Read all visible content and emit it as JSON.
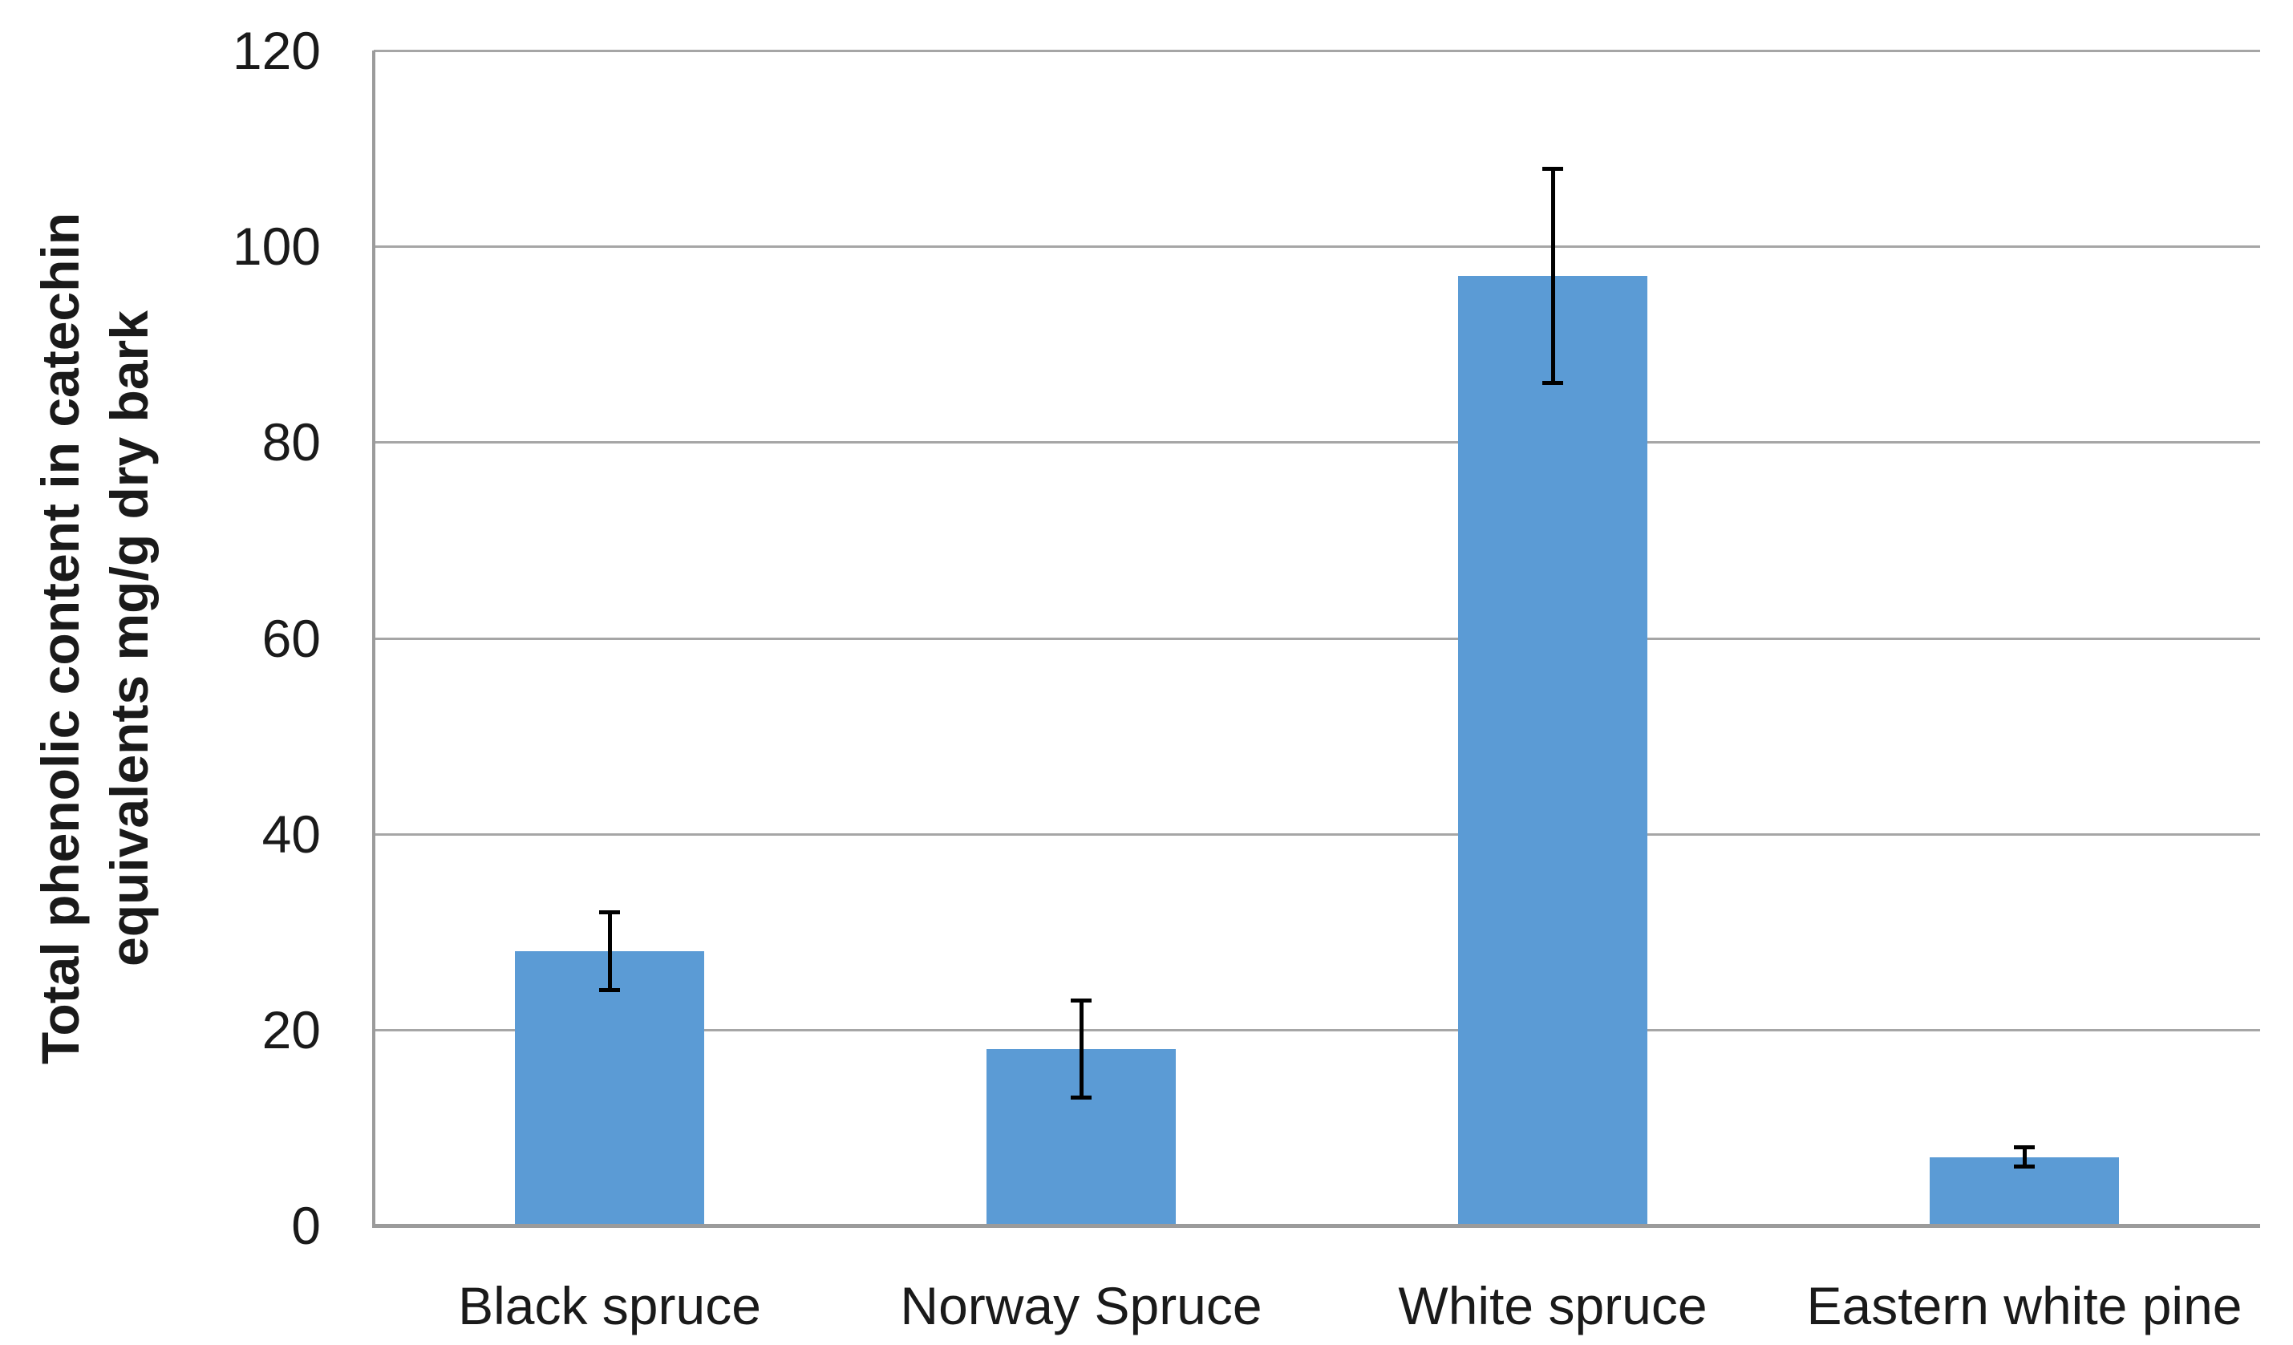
{
  "chart_data": {
    "type": "bar",
    "categories": [
      "Black spruce",
      "Norway Spruce",
      "White spruce",
      "Eastern white pine"
    ],
    "values": [
      28,
      18,
      97,
      7
    ],
    "error_bars": [
      4,
      5,
      11,
      1
    ],
    "title": "",
    "xlabel": "",
    "ylabel": "Total phenolic content in catechin equivalents mg/g dry bark",
    "ylabel_lines": [
      "Total phenolic content in catechin",
      "equivalents mg/g dry bark"
    ],
    "yticks": [
      0,
      20,
      40,
      60,
      80,
      100,
      120
    ],
    "ylim": [
      0,
      120
    ],
    "grid": true,
    "legend": false,
    "colors": {
      "bar_fill": "#5B9BD5",
      "gridline": "#A6A6A6",
      "axis_line": "#9B9B9B",
      "error_bar": "#000000",
      "text": "#1A1A1A",
      "background": "#FFFFFF"
    }
  }
}
